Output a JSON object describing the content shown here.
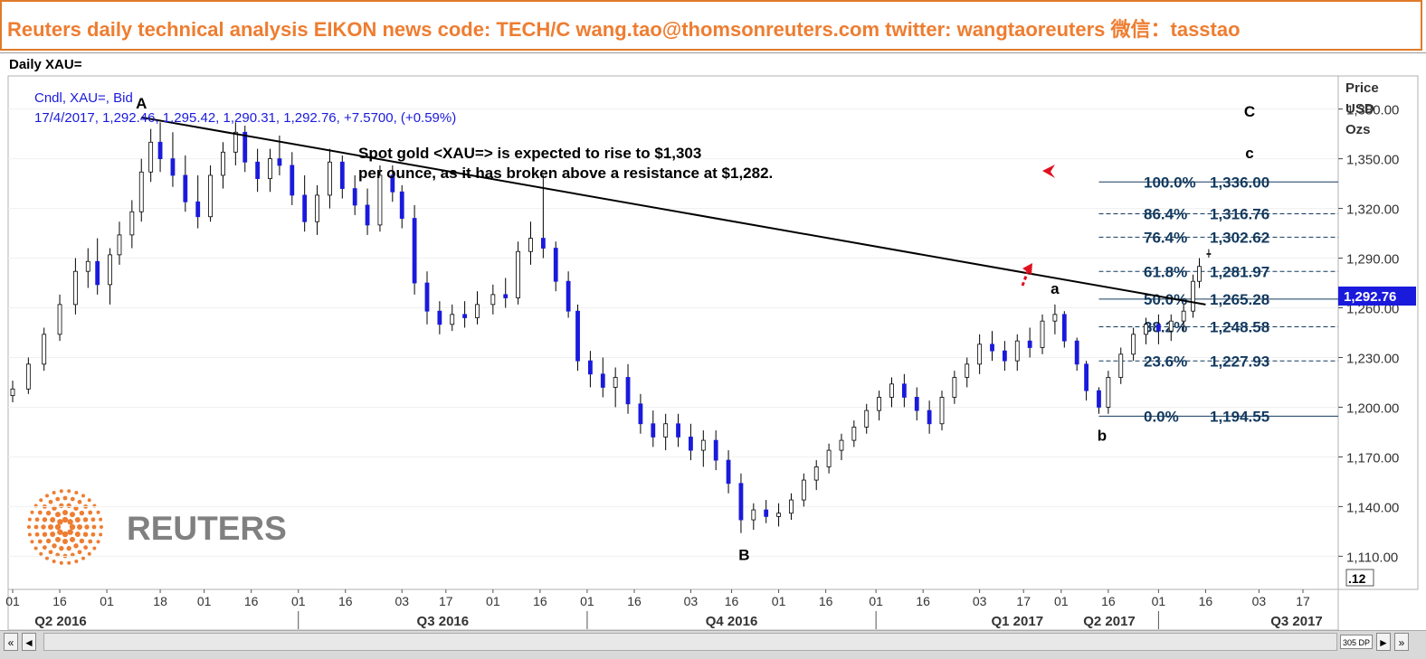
{
  "banner": {
    "text": "Reuters daily technical analysis  EIKON news code: TECH/C  wang.tao@thomsonreuters.com  twitter:  wangtaoreuters   微信：tasstao"
  },
  "window": {
    "title": "Daily XAU="
  },
  "logo": {
    "text": "REUTERS"
  },
  "scroll": {
    "left_fast": "«",
    "left": "◄",
    "right": "►",
    "right_fast": "»",
    "dp_label": "305 DP"
  },
  "chart_data": {
    "type": "candlestick",
    "info_line1": "Cndl, XAU=, Bid",
    "info_line2": "17/4/2017, 1,292.46, 1,295.42, 1,290.31, 1,292.76, +7.5700, (+0.59%)",
    "annotation": [
      "Spot gold <XAU=> is expected to rise to $1,303",
      "per ounce, as it has broken above a resistance at $1,282."
    ],
    "axis_title": [
      "Price",
      "USD",
      "Ozs"
    ],
    "ylim": [
      1090,
      1400
    ],
    "y_ticks": [
      1110,
      1140,
      1170,
      1200,
      1230,
      1260,
      1290,
      1320,
      1350,
      1380
    ],
    "y_tick_labels": [
      "1,110.00",
      "1,140.00",
      "1,170.00",
      "1,200.00",
      "1,230.00",
      "1,260.00",
      "1,290.00",
      "1,320.00",
      "1,350.00",
      "1,380.00"
    ],
    "current_price_label": "1,292.76",
    "current_price": 1292.76,
    "scale_box": ".12",
    "x_date_labels": [
      "01",
      "16",
      "01",
      "18",
      "01",
      "16",
      "01",
      "16",
      "03",
      "17",
      "01",
      "16",
      "01",
      "16",
      "03",
      "16",
      "01",
      "16",
      "01",
      "16",
      "03",
      "17",
      "01",
      "16",
      "01",
      "16",
      "03",
      "17"
    ],
    "x_date_label_positions": [
      "2016-04-01",
      "2016-04-16",
      "2016-05-01",
      "2016-05-18",
      "2016-06-01",
      "2016-06-16",
      "2016-07-01",
      "2016-07-16",
      "2016-08-03",
      "2016-08-17",
      "2016-09-01",
      "2016-09-16",
      "2016-10-01",
      "2016-10-16",
      "2016-11-03",
      "2016-11-16",
      "2016-12-01",
      "2016-12-16",
      "2017-01-01",
      "2017-01-16",
      "2017-02-03",
      "2017-02-17",
      "2017-03-01",
      "2017-03-16",
      "2017-04-01",
      "2017-04-16",
      "2017-05-03",
      "2017-05-17"
    ],
    "x_quarters": [
      "Q2 2016",
      "Q3 2016",
      "Q4 2016",
      "Q1 2017",
      "Q2 2017",
      "Q3 2017"
    ],
    "candles": [
      [
        "2016-04-01",
        1207,
        1216,
        1203,
        1211
      ],
      [
        "2016-04-06",
        1211,
        1230,
        1208,
        1226
      ],
      [
        "2016-04-11",
        1226,
        1248,
        1222,
        1244
      ],
      [
        "2016-04-16",
        1244,
        1268,
        1240,
        1262
      ],
      [
        "2016-04-21",
        1262,
        1290,
        1256,
        1282
      ],
      [
        "2016-04-25",
        1282,
        1296,
        1272,
        1288
      ],
      [
        "2016-04-28",
        1288,
        1302,
        1268,
        1274
      ],
      [
        "2016-05-02",
        1274,
        1296,
        1262,
        1292
      ],
      [
        "2016-05-05",
        1292,
        1312,
        1286,
        1304
      ],
      [
        "2016-05-09",
        1304,
        1325,
        1296,
        1318
      ],
      [
        "2016-05-12",
        1318,
        1350,
        1312,
        1342
      ],
      [
        "2016-05-15",
        1342,
        1368,
        1336,
        1360
      ],
      [
        "2016-05-18",
        1360,
        1372,
        1342,
        1350
      ],
      [
        "2016-05-22",
        1350,
        1366,
        1333,
        1340
      ],
      [
        "2016-05-26",
        1340,
        1352,
        1318,
        1324
      ],
      [
        "2016-05-30",
        1324,
        1340,
        1308,
        1315
      ],
      [
        "2016-06-03",
        1315,
        1346,
        1312,
        1340
      ],
      [
        "2016-06-07",
        1340,
        1360,
        1332,
        1354
      ],
      [
        "2016-06-11",
        1354,
        1372,
        1346,
        1366
      ],
      [
        "2016-06-14",
        1366,
        1370,
        1342,
        1348
      ],
      [
        "2016-06-18",
        1348,
        1356,
        1330,
        1338
      ],
      [
        "2016-06-22",
        1338,
        1356,
        1330,
        1350
      ],
      [
        "2016-06-25",
        1350,
        1364,
        1340,
        1346
      ],
      [
        "2016-06-29",
        1346,
        1354,
        1322,
        1328
      ],
      [
        "2016-07-03",
        1328,
        1340,
        1306,
        1312
      ],
      [
        "2016-07-07",
        1312,
        1334,
        1304,
        1328
      ],
      [
        "2016-07-11",
        1328,
        1356,
        1320,
        1348
      ],
      [
        "2016-07-15",
        1348,
        1352,
        1326,
        1332
      ],
      [
        "2016-07-19",
        1332,
        1340,
        1316,
        1322
      ],
      [
        "2016-07-23",
        1322,
        1332,
        1304,
        1310
      ],
      [
        "2016-07-27",
        1310,
        1346,
        1306,
        1340
      ],
      [
        "2016-07-31",
        1340,
        1346,
        1324,
        1330
      ],
      [
        "2016-08-03",
        1330,
        1334,
        1308,
        1314
      ],
      [
        "2016-08-07",
        1314,
        1322,
        1268,
        1275
      ],
      [
        "2016-08-11",
        1275,
        1282,
        1250,
        1258
      ],
      [
        "2016-08-15",
        1258,
        1264,
        1244,
        1250
      ],
      [
        "2016-08-19",
        1250,
        1262,
        1246,
        1256
      ],
      [
        "2016-08-23",
        1256,
        1264,
        1248,
        1254
      ],
      [
        "2016-08-27",
        1254,
        1270,
        1250,
        1262
      ],
      [
        "2016-09-01",
        1262,
        1274,
        1256,
        1268
      ],
      [
        "2016-09-05",
        1268,
        1278,
        1260,
        1266
      ],
      [
        "2016-09-09",
        1266,
        1300,
        1262,
        1294
      ],
      [
        "2016-09-13",
        1294,
        1312,
        1286,
        1302
      ],
      [
        "2016-09-17",
        1302,
        1340,
        1290,
        1296
      ],
      [
        "2016-09-21",
        1296,
        1300,
        1270,
        1276
      ],
      [
        "2016-09-25",
        1276,
        1282,
        1254,
        1258
      ],
      [
        "2016-09-28",
        1258,
        1262,
        1222,
        1228
      ],
      [
        "2016-10-02",
        1228,
        1234,
        1212,
        1220
      ],
      [
        "2016-10-06",
        1220,
        1230,
        1206,
        1212
      ],
      [
        "2016-10-10",
        1212,
        1224,
        1200,
        1218
      ],
      [
        "2016-10-14",
        1218,
        1226,
        1196,
        1202
      ],
      [
        "2016-10-18",
        1202,
        1208,
        1184,
        1190
      ],
      [
        "2016-10-22",
        1190,
        1198,
        1176,
        1182
      ],
      [
        "2016-10-26",
        1182,
        1196,
        1174,
        1190
      ],
      [
        "2016-10-30",
        1190,
        1196,
        1176,
        1182
      ],
      [
        "2016-11-03",
        1182,
        1190,
        1168,
        1174
      ],
      [
        "2016-11-07",
        1174,
        1186,
        1164,
        1180
      ],
      [
        "2016-11-11",
        1180,
        1186,
        1162,
        1168
      ],
      [
        "2016-11-15",
        1168,
        1174,
        1148,
        1154
      ],
      [
        "2016-11-19",
        1154,
        1160,
        1124,
        1132
      ],
      [
        "2016-11-23",
        1132,
        1142,
        1126,
        1138
      ],
      [
        "2016-11-27",
        1138,
        1144,
        1130,
        1134
      ],
      [
        "2016-12-01",
        1134,
        1142,
        1128,
        1136
      ],
      [
        "2016-12-05",
        1136,
        1148,
        1132,
        1144
      ],
      [
        "2016-12-09",
        1144,
        1160,
        1140,
        1156
      ],
      [
        "2016-12-13",
        1156,
        1168,
        1150,
        1164
      ],
      [
        "2016-12-17",
        1164,
        1178,
        1160,
        1174
      ],
      [
        "2016-12-21",
        1174,
        1184,
        1168,
        1180
      ],
      [
        "2016-12-25",
        1180,
        1192,
        1176,
        1188
      ],
      [
        "2016-12-29",
        1188,
        1202,
        1184,
        1198
      ],
      [
        "2017-01-02",
        1198,
        1210,
        1192,
        1206
      ],
      [
        "2017-01-06",
        1206,
        1218,
        1200,
        1214
      ],
      [
        "2017-01-10",
        1214,
        1220,
        1200,
        1206
      ],
      [
        "2017-01-14",
        1206,
        1212,
        1192,
        1198
      ],
      [
        "2017-01-18",
        1198,
        1204,
        1184,
        1190
      ],
      [
        "2017-01-22",
        1190,
        1210,
        1186,
        1206
      ],
      [
        "2017-01-26",
        1206,
        1222,
        1202,
        1218
      ],
      [
        "2017-01-30",
        1218,
        1230,
        1212,
        1226
      ],
      [
        "2017-02-03",
        1226,
        1244,
        1220,
        1238
      ],
      [
        "2017-02-07",
        1238,
        1246,
        1228,
        1234
      ],
      [
        "2017-02-11",
        1234,
        1240,
        1222,
        1228
      ],
      [
        "2017-02-15",
        1228,
        1244,
        1222,
        1240
      ],
      [
        "2017-02-19",
        1240,
        1248,
        1230,
        1236
      ],
      [
        "2017-02-23",
        1236,
        1256,
        1232,
        1252
      ],
      [
        "2017-02-27",
        1252,
        1262,
        1244,
        1256
      ],
      [
        "2017-03-02",
        1256,
        1258,
        1236,
        1240
      ],
      [
        "2017-03-06",
        1240,
        1242,
        1222,
        1226
      ],
      [
        "2017-03-09",
        1226,
        1228,
        1204,
        1210
      ],
      [
        "2017-03-13",
        1210,
        1212,
        1196,
        1200
      ],
      [
        "2017-03-16",
        1200,
        1222,
        1196,
        1218
      ],
      [
        "2017-03-20",
        1218,
        1236,
        1214,
        1232
      ],
      [
        "2017-03-24",
        1232,
        1248,
        1228,
        1244
      ],
      [
        "2017-03-28",
        1244,
        1254,
        1238,
        1250
      ],
      [
        "2017-04-01",
        1250,
        1256,
        1238,
        1246
      ],
      [
        "2017-04-05",
        1246,
        1256,
        1240,
        1252
      ],
      [
        "2017-04-09",
        1252,
        1262,
        1246,
        1258
      ],
      [
        "2017-04-12",
        1258,
        1280,
        1254,
        1276
      ],
      [
        "2017-04-14",
        1276,
        1290,
        1272,
        1285
      ],
      [
        "2017-04-17",
        1292.46,
        1295.42,
        1290.31,
        1292.76
      ]
    ],
    "trendline": {
      "from": [
        "2016-05-12",
        1375
      ],
      "to": [
        "2017-04-16",
        1262
      ]
    },
    "wave_labels": [
      {
        "text": "A",
        "date": "2016-05-12",
        "price": 1375,
        "pos": "above"
      },
      {
        "text": "B",
        "date": "2016-11-20",
        "price": 1122,
        "pos": "below"
      },
      {
        "text": "a",
        "date": "2017-02-27",
        "price": 1263,
        "pos": "above"
      },
      {
        "text": "b",
        "date": "2017-03-14",
        "price": 1194,
        "pos": "below"
      },
      {
        "text": "C",
        "date": "2017-04-30",
        "price": 1370,
        "pos": "above"
      },
      {
        "text": "c",
        "date": "2017-04-30",
        "price": 1345,
        "pos": "above"
      }
    ],
    "fibonacci": [
      {
        "pct": "100.0%",
        "value": 1336.0,
        "label": "1,336.00"
      },
      {
        "pct": "86.4%",
        "value": 1316.76,
        "label": "1,316.76"
      },
      {
        "pct": "76.4%",
        "value": 1302.62,
        "label": "1,302.62"
      },
      {
        "pct": "61.8%",
        "value": 1281.97,
        "label": "1,281.97"
      },
      {
        "pct": "50.0%",
        "value": 1265.28,
        "label": "1,265.28"
      },
      {
        "pct": "38.2%",
        "value": 1248.58,
        "label": "1,248.58"
      },
      {
        "pct": "23.6%",
        "value": 1227.93,
        "label": "1,227.93"
      },
      {
        "pct": "0.0%",
        "value": 1194.55,
        "label": "1,194.55"
      }
    ],
    "colors": {
      "up": "#ffffff",
      "down": "#1a1adc",
      "trendline": "#000000",
      "fib": "#12395e",
      "fib_text": "#12395e",
      "arrow": "#e01020",
      "info": "#1a1adc",
      "price_box": "#1a1adc"
    }
  }
}
